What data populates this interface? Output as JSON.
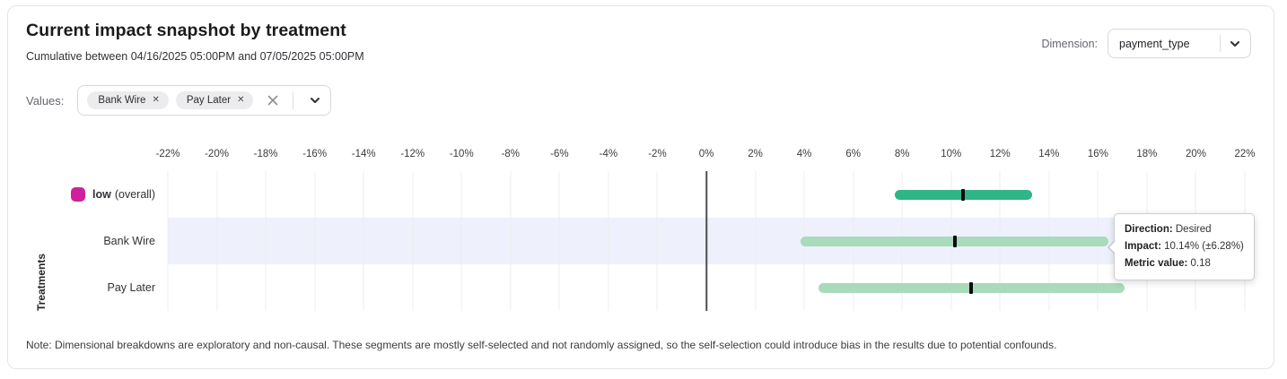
{
  "header": {
    "title": "Current impact snapshot by treatment",
    "subtitle": "Cumulative between 04/16/2025 05:00PM and 07/05/2025 05:00PM",
    "dimension_label": "Dimension:",
    "dimension_value": "payment_type"
  },
  "filters": {
    "values_label": "Values:",
    "chips": [
      {
        "label": "Bank Wire"
      },
      {
        "label": "Pay Later"
      }
    ]
  },
  "chart_data": {
    "type": "bar",
    "subtype": "horizontal-interval",
    "ylabel": "Treatments",
    "x_axis": {
      "min": -22,
      "max": 22,
      "tick_step": 2,
      "unit": "%",
      "position": "top"
    },
    "grid": true,
    "zero_line": true,
    "rows": [
      {
        "name": "low",
        "suffix": "(overall)",
        "bold": true,
        "legend_color": "#d0219c",
        "bar_color": "#30b586",
        "low": 7.7,
        "mid": 10.5,
        "high": 13.3,
        "highlighted": false
      },
      {
        "name": "Bank Wire",
        "suffix": "",
        "bold": false,
        "legend_color": null,
        "bar_color": "#a9dab9",
        "low": 3.86,
        "mid": 10.14,
        "high": 16.42,
        "highlighted": true
      },
      {
        "name": "Pay Later",
        "suffix": "",
        "bold": false,
        "legend_color": null,
        "bar_color": "#a9dab9",
        "low": 4.6,
        "mid": 10.8,
        "high": 17.1,
        "highlighted": false
      }
    ],
    "mark_color": "#0b0b0d",
    "highlight_color": "#eef0fc"
  },
  "tooltip": {
    "direction_label": "Direction:",
    "direction_value": "Desired",
    "impact_label": "Impact:",
    "impact_value": "10.14% (±6.28%)",
    "metric_label": "Metric value:",
    "metric_value": "0.18"
  },
  "note": "Note: Dimensional breakdowns are exploratory and non-causal. These segments are mostly self-selected and not randomly assigned, so the self-selection could introduce bias in the results due to potential confounds."
}
